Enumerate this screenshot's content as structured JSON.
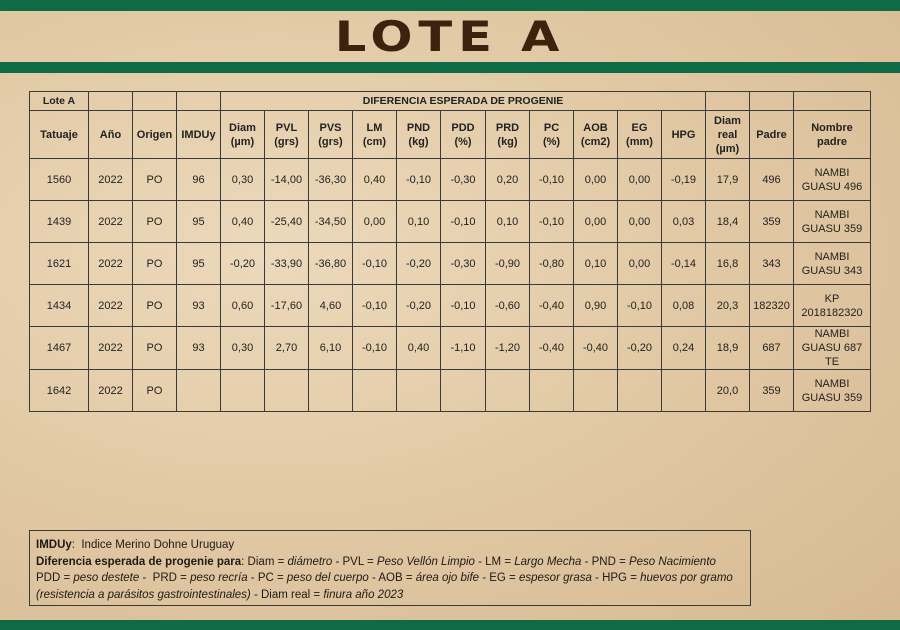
{
  "title": "LOTE A",
  "table": {
    "group_header": [
      "Lote A",
      null,
      null,
      null,
      "DIFERENCIA ESPERADA DE PROGENIE",
      null,
      null,
      null
    ],
    "columns": [
      [
        "Tatuaje"
      ],
      [
        "Año"
      ],
      [
        "Origen"
      ],
      [
        "IMDUy"
      ],
      [
        "Diam",
        "(µm)"
      ],
      [
        "PVL",
        "(grs)"
      ],
      [
        "PVS",
        "(grs)"
      ],
      [
        "LM",
        "(cm)"
      ],
      [
        "PND",
        "(kg)"
      ],
      [
        "PDD",
        "(%)"
      ],
      [
        "PRD",
        "(kg)"
      ],
      [
        "PC",
        "(%)"
      ],
      [
        "AOB",
        "(cm2)"
      ],
      [
        "EG",
        "(mm)"
      ],
      [
        "HPG"
      ],
      [
        "Diam",
        "real",
        "(µm)"
      ],
      [
        "Padre"
      ],
      [
        "Nombre",
        "padre"
      ]
    ],
    "rows": [
      [
        "1560",
        "2022",
        "PO",
        "96",
        "0,30",
        "-14,00",
        "-36,30",
        "0,40",
        "-0,10",
        "-0,30",
        "0,20",
        "-0,10",
        "0,00",
        "0,00",
        "-0,19",
        "17,9",
        "496",
        [
          "NAMBI",
          "GUASU 496"
        ]
      ],
      [
        "1439",
        "2022",
        "PO",
        "95",
        "0,40",
        "-25,40",
        "-34,50",
        "0,00",
        "0,10",
        "-0,10",
        "0,10",
        "-0,10",
        "0,00",
        "0,00",
        "0,03",
        "18,4",
        "359",
        [
          "NAMBI",
          "GUASU 359"
        ]
      ],
      [
        "1621",
        "2022",
        "PO",
        "95",
        "-0,20",
        "-33,90",
        "-36,80",
        "-0,10",
        "-0,20",
        "-0,30",
        "-0,90",
        "-0,80",
        "0,10",
        "0,00",
        "-0,14",
        "16,8",
        "343",
        [
          "NAMBI",
          "GUASU 343"
        ]
      ],
      [
        "1434",
        "2022",
        "PO",
        "93",
        "0,60",
        "-17,60",
        "4,60",
        "-0,10",
        "-0,20",
        "-0,10",
        "-0,60",
        "-0,40",
        "0,90",
        "-0,10",
        "0,08",
        "20,3",
        "182320",
        [
          "KP",
          "2018182320"
        ]
      ],
      [
        "1467",
        "2022",
        "PO",
        "93",
        "0,30",
        "2,70",
        "6,10",
        "-0,10",
        "0,40",
        "-1,10",
        "-1,20",
        "-0,40",
        "-0,40",
        "-0,20",
        "0,24",
        "18,9",
        "687",
        [
          "NAMBI",
          "GUASU 687 TE"
        ]
      ],
      [
        "1642",
        "2022",
        "PO",
        null,
        null,
        null,
        null,
        null,
        null,
        null,
        null,
        null,
        null,
        null,
        null,
        "20,0",
        "359",
        [
          "NAMBI",
          "GUASU 359"
        ]
      ]
    ]
  },
  "legend": [
    [
      {
        "text": "IMDUy",
        "bold": true
      },
      {
        "text": ":  Indice Merino Dohne Uruguay"
      }
    ],
    [
      {
        "text": "Diferencia esperada de progenie para",
        "bold": true
      },
      {
        "text": ": Diam = "
      },
      {
        "text": "diámetro",
        "italic": true
      },
      {
        "text": " - PVL = "
      },
      {
        "text": "Peso Vellón Limpio",
        "italic": true
      },
      {
        "text": " - LM = "
      },
      {
        "text": "Largo Mecha",
        "italic": true
      },
      {
        "text": " - PND = "
      },
      {
        "text": "Peso Nacimiento",
        "italic": true
      }
    ],
    [
      {
        "text": "PDD = "
      },
      {
        "text": "peso destete",
        "italic": true
      },
      {
        "text": " -  PRD = "
      },
      {
        "text": "peso recría",
        "italic": true
      },
      {
        "text": " - PC = "
      },
      {
        "text": "peso del cuerpo",
        "italic": true
      },
      {
        "text": " - AOB = "
      },
      {
        "text": "área ojo bife",
        "italic": true
      },
      {
        "text": " - EG = "
      },
      {
        "text": "espesor grasa",
        "italic": true
      },
      {
        "text": " - HPG = "
      },
      {
        "text": "huevos por gramo",
        "italic": true
      }
    ],
    [
      {
        "text": "(resistencia a parásitos gastrointestinales)",
        "italic": true
      },
      {
        "text": " - Diam real = "
      },
      {
        "text": "finura año 2023",
        "italic": true
      }
    ]
  ]
}
